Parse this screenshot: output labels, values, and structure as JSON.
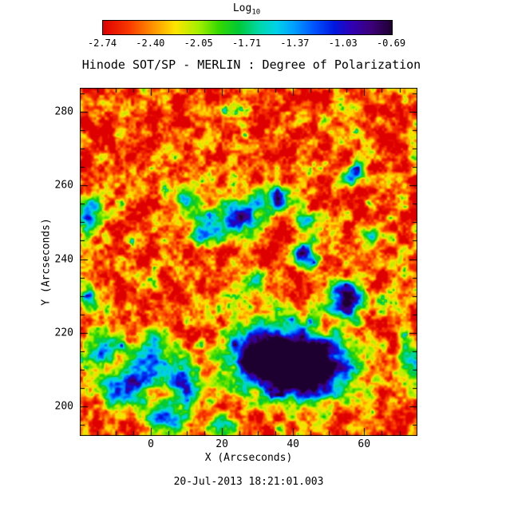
{
  "colorbar": {
    "title": "Log",
    "title_sub": "10",
    "tick_labels": [
      "-2.74",
      "-2.40",
      "-2.05",
      "-1.71",
      "-1.37",
      "-1.03",
      "-0.69"
    ]
  },
  "title": "Hinode SOT/SP - MERLIN : Degree of Polarization",
  "x_axis": {
    "label": "X (Arcseconds)",
    "ticks": [
      0,
      20,
      40,
      60
    ],
    "tick_labels": [
      "0",
      "20",
      "40",
      "60"
    ]
  },
  "y_axis": {
    "label": "Y (Arcseconds)",
    "ticks": [
      200,
      220,
      240,
      260,
      280
    ],
    "tick_labels": [
      "200",
      "220",
      "240",
      "260",
      "280"
    ]
  },
  "footer": "20-Jul-2013 18:21:01.003",
  "chart_data": {
    "type": "heatmap",
    "title": "Hinode SOT/SP - MERLIN : Degree of Polarization",
    "xlabel": "X (Arcseconds)",
    "ylabel": "Y (Arcseconds)",
    "xlim": [
      -20,
      75
    ],
    "ylim": [
      192,
      286.5
    ],
    "x_minor_step": 5,
    "y_minor_step": 5,
    "value_label": "Log10 Degree of Polarization",
    "value_range": [
      -2.74,
      -0.69
    ],
    "colorbar_ticks": [
      -2.74,
      -2.4,
      -2.05,
      -1.71,
      -1.37,
      -1.03,
      -0.69
    ],
    "legend_position": "top-colorbar",
    "grid": false,
    "colormap_stops": [
      {
        "t": 0.0,
        "color": "#de0000"
      },
      {
        "t": 0.09,
        "color": "#f93800"
      },
      {
        "t": 0.17,
        "color": "#ff8f00"
      },
      {
        "t": 0.25,
        "color": "#ffe400"
      },
      {
        "t": 0.33,
        "color": "#a5f000"
      },
      {
        "t": 0.4,
        "color": "#37d800"
      },
      {
        "t": 0.47,
        "color": "#00c836"
      },
      {
        "t": 0.54,
        "color": "#00d8a8"
      },
      {
        "t": 0.6,
        "color": "#00d2e8"
      },
      {
        "t": 0.66,
        "color": "#00a0ff"
      },
      {
        "t": 0.73,
        "color": "#0054ff"
      },
      {
        "t": 0.8,
        "color": "#0018e0"
      },
      {
        "t": 0.86,
        "color": "#3000b4"
      },
      {
        "t": 0.93,
        "color": "#3c0078"
      },
      {
        "t": 1.0,
        "color": "#1e0030"
      }
    ],
    "base_level": -2.52,
    "noise": {
      "contrast": 1.5,
      "octaves": [
        {
          "scale": 3.2,
          "amp": 0.5,
          "seed": 11
        },
        {
          "scale": 1.5,
          "amp": 0.3,
          "seed": 29
        },
        {
          "scale": 0.75,
          "amp": 0.2,
          "seed": 47
        }
      ],
      "highlight_boost": {
        "threshold": 0.78,
        "gain": 3.0
      }
    },
    "features": [
      {
        "x": 39,
        "y": 212,
        "amp": 2.0,
        "sx": 9.0,
        "sy": 6.5
      },
      {
        "x": 31,
        "y": 214,
        "amp": 1.6,
        "sx": 6.0,
        "sy": 5.0
      },
      {
        "x": 47,
        "y": 210,
        "amp": 1.7,
        "sx": 6.5,
        "sy": 5.0
      },
      {
        "x": 55,
        "y": 229,
        "amp": 1.85,
        "sx": 4.0,
        "sy": 3.3
      },
      {
        "x": 43,
        "y": 241,
        "amp": 1.5,
        "sx": 3.0,
        "sy": 2.4
      },
      {
        "x": 0,
        "y": 212,
        "amp": 1.5,
        "sx": 5.5,
        "sy": 5.0
      },
      {
        "x": -8,
        "y": 204,
        "amp": 1.35,
        "sx": 4.0,
        "sy": 3.5
      },
      {
        "x": 10,
        "y": 206,
        "amp": 1.3,
        "sx": 3.5,
        "sy": 3.5
      },
      {
        "x": -14,
        "y": 217,
        "amp": 1.2,
        "sx": 3.0,
        "sy": 4.0
      },
      {
        "x": 5,
        "y": 197,
        "amp": 1.25,
        "sx": 4.0,
        "sy": 2.8
      },
      {
        "x": 25,
        "y": 251,
        "amp": 1.45,
        "sx": 5.5,
        "sy": 3.0
      },
      {
        "x": 35,
        "y": 256,
        "amp": 1.3,
        "sx": 3.5,
        "sy": 2.5
      },
      {
        "x": 15,
        "y": 247,
        "amp": 1.2,
        "sx": 3.0,
        "sy": 2.5
      },
      {
        "x": 44,
        "y": 250,
        "amp": 1.2,
        "sx": 2.5,
        "sy": 2.0
      },
      {
        "x": 57,
        "y": 263,
        "amp": 1.3,
        "sx": 2.3,
        "sy": 2.3
      },
      {
        "x": 10,
        "y": 257,
        "amp": 1.05,
        "sx": 2.5,
        "sy": 2.5
      },
      {
        "x": -17,
        "y": 252,
        "amp": 1.15,
        "sx": 2.5,
        "sy": 4.0
      },
      {
        "x": -17,
        "y": 230,
        "amp": 0.95,
        "sx": 2.0,
        "sy": 3.0
      },
      {
        "x": 73,
        "y": 213,
        "amp": 0.9,
        "sx": 2.5,
        "sy": 5.0
      },
      {
        "x": 20,
        "y": 195,
        "amp": 0.95,
        "sx": 3.0,
        "sy": 2.0
      },
      {
        "x": 30,
        "y": 234,
        "amp": 0.9,
        "sx": 2.5,
        "sy": 2.0
      },
      {
        "x": 63,
        "y": 247,
        "amp": 0.85,
        "sx": 2.5,
        "sy": 2.0
      }
    ]
  }
}
